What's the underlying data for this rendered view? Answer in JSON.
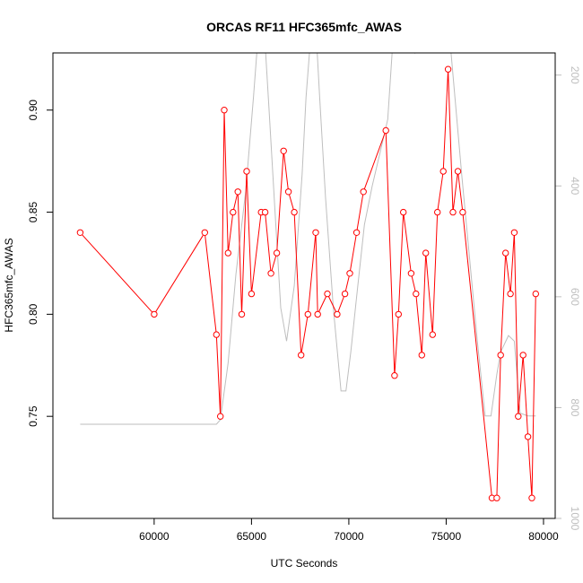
{
  "chart_data": {
    "type": "line",
    "title": "ORCAS RF11 HFC365mfc_AWAS",
    "xlabel": "UTC Seconds",
    "ylabel": "HFC365mfc_AWAS",
    "y2label": "",
    "xlim": [
      54800,
      80600
    ],
    "ylim": [
      0.7,
      0.928
    ],
    "y2lim": [
      1000,
      160
    ],
    "x_ticks": [
      60000,
      65000,
      70000,
      75000,
      80000
    ],
    "y_ticks": [
      0.75,
      0.8,
      0.85,
      0.9
    ],
    "y2_ticks": [
      200,
      400,
      600,
      800,
      1000
    ],
    "colors": {
      "primary": "#ff0000",
      "secondary": "#bebebe",
      "axis": "#000000"
    },
    "series": [
      {
        "role": "primary",
        "axis": "left",
        "color": "#ff0000",
        "markers": "open-circle",
        "x": [
          56200,
          60000,
          62600,
          63200,
          63400,
          63600,
          63800,
          64050,
          64300,
          64500,
          64750,
          65000,
          65500,
          65700,
          66000,
          66300,
          66650,
          66900,
          67200,
          67550,
          67900,
          68300,
          68400,
          68900,
          69400,
          69800,
          70050,
          70400,
          70750,
          71900,
          72350,
          72550,
          72800,
          73200,
          73450,
          73750,
          73950,
          74300,
          74550,
          74850,
          75100,
          75350,
          75600,
          75850,
          77350,
          77600,
          77800,
          78050,
          78300,
          78500,
          78700,
          78950,
          79200,
          79400,
          79600
        ],
        "y": [
          0.84,
          0.8,
          0.84,
          0.79,
          0.75,
          0.9,
          0.83,
          0.85,
          0.86,
          0.8,
          0.87,
          0.81,
          0.85,
          0.85,
          0.82,
          0.83,
          0.88,
          0.86,
          0.85,
          0.78,
          0.8,
          0.84,
          0.8,
          0.81,
          0.8,
          0.81,
          0.82,
          0.84,
          0.86,
          0.89,
          0.77,
          0.8,
          0.85,
          0.82,
          0.81,
          0.78,
          0.83,
          0.79,
          0.85,
          0.87,
          0.92,
          0.85,
          0.87,
          0.85,
          0.71,
          0.71,
          0.78,
          0.83,
          0.81,
          0.84,
          0.75,
          0.78,
          0.74,
          0.71,
          0.81
        ]
      },
      {
        "role": "secondary",
        "axis": "right",
        "color": "#bebebe",
        "markers": "none",
        "x": [
          56200,
          60000,
          62600,
          63200,
          63400,
          63800,
          64200,
          64700,
          65100,
          65400,
          65650,
          65900,
          66200,
          66500,
          66800,
          67200,
          67600,
          67800,
          68000,
          68300,
          68500,
          68800,
          69200,
          69600,
          69850,
          70100,
          70400,
          70800,
          71200,
          71600,
          72000,
          72300,
          72600,
          72900,
          73200,
          73400,
          73800,
          74100,
          74300,
          74600,
          74900,
          75200,
          75500,
          75800,
          76200,
          76600,
          77000,
          77300,
          77600,
          77800,
          78200,
          78500,
          78800,
          79200,
          79600
        ],
        "y": [
          830,
          830,
          830,
          830,
          822,
          720,
          560,
          410,
          240,
          100,
          115,
          260,
          440,
          620,
          680,
          580,
          380,
          240,
          150,
          110,
          240,
          420,
          620,
          770,
          770,
          700,
          600,
          470,
          400,
          340,
          280,
          120,
          105,
          105,
          140,
          160,
          120,
          120,
          160,
          115,
          115,
          140,
          260,
          380,
          530,
          680,
          815,
          815,
          740,
          700,
          670,
          680,
          810,
          815,
          815
        ]
      }
    ]
  }
}
